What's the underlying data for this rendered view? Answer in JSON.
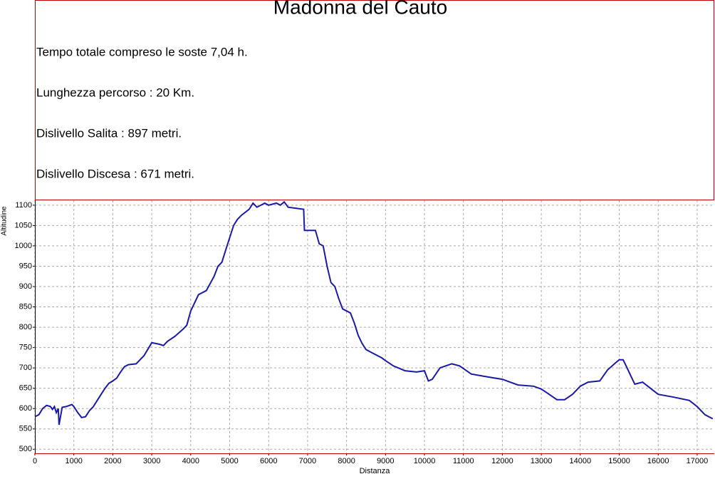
{
  "chart_data": {
    "type": "line",
    "title": "Madonna del Cauto",
    "annotations": [
      "Tempo totale compreso le soste 7,04 h.",
      "Lunghezza percorso : 20 Km.",
      "Dislivello Salita : 897 metri.",
      "Dislivello Discesa : 671 metri."
    ],
    "xlabel": "Distanza",
    "ylabel": "Altitudine",
    "x": [
      0,
      100,
      200,
      300,
      400,
      450,
      500,
      550,
      600,
      620,
      700,
      800,
      950,
      1000,
      1100,
      1200,
      1300,
      1400,
      1500,
      1600,
      1700,
      1800,
      1900,
      2000,
      2100,
      2200,
      2300,
      2400,
      2600,
      2800,
      3000,
      3200,
      3300,
      3400,
      3600,
      3800,
      3900,
      4000,
      4100,
      4200,
      4400,
      4600,
      4700,
      4800,
      4900,
      5000,
      5100,
      5200,
      5300,
      5500,
      5600,
      5700,
      5900,
      6000,
      6200,
      6300,
      6400,
      6500,
      6900,
      6920,
      7200,
      7300,
      7400,
      7500,
      7600,
      7700,
      7800,
      7900,
      8000,
      8100,
      8200,
      8300,
      8400,
      8500,
      8700,
      8900,
      9000,
      9200,
      9500,
      9800,
      10000,
      10100,
      10200,
      10400,
      10700,
      10900,
      11200,
      11500,
      11800,
      12000,
      12400,
      12800,
      13000,
      13200,
      13400,
      13600,
      13800,
      14000,
      14200,
      14500,
      14700,
      14900,
      15000,
      15100,
      15200,
      15300,
      15400,
      15600,
      15800,
      16000,
      16400,
      16800,
      17000,
      17200,
      17400
    ],
    "series": [
      {
        "name": "Altitudine",
        "color": "#1a1aa8",
        "values": [
          580,
          585,
          600,
          608,
          605,
          598,
          605,
          590,
          600,
          560,
          603,
          605,
          610,
          605,
          590,
          578,
          580,
          595,
          605,
          620,
          635,
          650,
          662,
          668,
          675,
          690,
          703,
          708,
          710,
          730,
          762,
          758,
          755,
          765,
          778,
          795,
          805,
          840,
          860,
          880,
          890,
          925,
          950,
          960,
          990,
          1020,
          1050,
          1065,
          1075,
          1090,
          1105,
          1095,
          1105,
          1100,
          1105,
          1100,
          1108,
          1095,
          1090,
          1038,
          1038,
          1005,
          1000,
          950,
          910,
          900,
          870,
          845,
          840,
          835,
          810,
          780,
          760,
          745,
          735,
          725,
          718,
          705,
          693,
          690,
          693,
          668,
          672,
          700,
          710,
          705,
          685,
          680,
          675,
          672,
          658,
          655,
          648,
          635,
          622,
          622,
          635,
          655,
          665,
          668,
          695,
          712,
          720,
          720,
          700,
          680,
          660,
          665,
          650,
          635,
          628,
          620,
          605,
          585,
          575
        ]
      }
    ],
    "xlim": [
      0,
      17440
    ],
    "ylim": [
      490,
      1112
    ],
    "xticks": [
      0,
      1000,
      2000,
      3000,
      4000,
      5000,
      6000,
      7000,
      8000,
      9000,
      10000,
      11000,
      12000,
      13000,
      14000,
      15000,
      16000,
      17000
    ],
    "yticks": [
      500,
      550,
      600,
      650,
      700,
      750,
      800,
      850,
      900,
      950,
      1000,
      1050,
      1100
    ],
    "grid": true
  }
}
